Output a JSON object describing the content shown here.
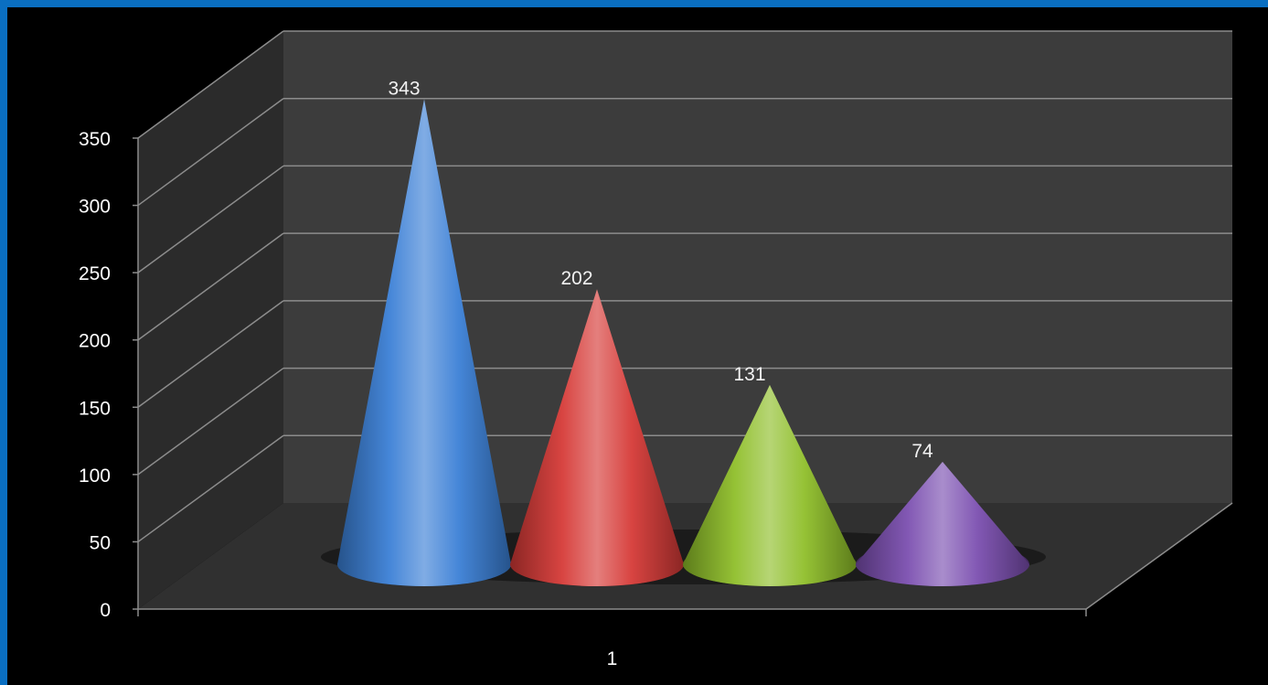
{
  "chart_data": {
    "type": "bar",
    "style": "3d-cone",
    "categories": [
      "1"
    ],
    "series": [
      {
        "values": [
          343
        ],
        "color": "#3b80d6"
      },
      {
        "values": [
          202
        ],
        "color": "#d63a37"
      },
      {
        "values": [
          131
        ],
        "color": "#8fbf2a"
      },
      {
        "values": [
          74
        ],
        "color": "#7b4fb0"
      }
    ],
    "data_labels": [
      "343",
      "202",
      "131",
      "74"
    ],
    "ylim": [
      0,
      350
    ],
    "yticks": [
      "0",
      "50",
      "100",
      "150",
      "200",
      "250",
      "300",
      "350"
    ],
    "xticks": [
      "1"
    ],
    "grid": true,
    "legend": "none",
    "title": "",
    "xlabel": "",
    "ylabel": ""
  },
  "colors": {
    "frame_border": "#0a6fc2",
    "background": "#000000",
    "back_wall": "#3c3c3c",
    "side_wall": "#2b2b2b",
    "floor": "#303030",
    "gridline": "#8c8c8c"
  }
}
